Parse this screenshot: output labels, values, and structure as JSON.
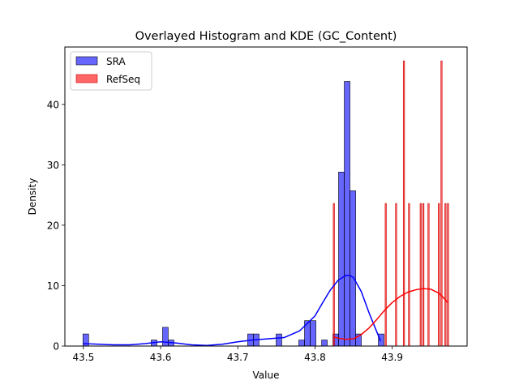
{
  "chart_data": {
    "type": "bar",
    "title": "Overlayed Histogram and KDE (GC_Content)",
    "xlabel": "Value",
    "ylabel": "Density",
    "xlim": [
      43.476,
      43.997
    ],
    "ylim": [
      0,
      49.5
    ],
    "xticks": [
      43.5,
      43.6,
      43.7,
      43.8,
      43.9
    ],
    "xtick_labels": [
      "43.5",
      "43.6",
      "43.7",
      "43.8",
      "43.9"
    ],
    "yticks": [
      0,
      10,
      20,
      30,
      40
    ],
    "ytick_labels": [
      "0",
      "10",
      "20",
      "30",
      "40"
    ],
    "grid": false,
    "legend": {
      "position": "upper-left"
    },
    "series": [
      {
        "name": "SRA",
        "kind": "histogram",
        "color": "#0000ff",
        "alpha": 0.6,
        "bin_width": 0.00736,
        "bins": [
          {
            "x": 43.4994,
            "y": 2.0
          },
          {
            "x": 43.5878,
            "y": 1.0
          },
          {
            "x": 43.6025,
            "y": 3.1
          },
          {
            "x": 43.6099,
            "y": 1.0
          },
          {
            "x": 43.7128,
            "y": 2.0
          },
          {
            "x": 43.7202,
            "y": 2.0
          },
          {
            "x": 43.7496,
            "y": 2.0
          },
          {
            "x": 43.779,
            "y": 1.0
          },
          {
            "x": 43.7864,
            "y": 4.2
          },
          {
            "x": 43.7938,
            "y": 4.2
          },
          {
            "x": 43.8085,
            "y": 1.0
          },
          {
            "x": 43.8232,
            "y": 2.0
          },
          {
            "x": 43.8305,
            "y": 28.8
          },
          {
            "x": 43.8379,
            "y": 43.8
          },
          {
            "x": 43.8453,
            "y": 25.7
          },
          {
            "x": 43.8526,
            "y": 2.0
          },
          {
            "x": 43.882,
            "y": 2.0
          }
        ],
        "kde": {
          "x": [
            43.5,
            43.52,
            43.54,
            43.56,
            43.58,
            43.6,
            43.62,
            43.64,
            43.66,
            43.68,
            43.7,
            43.72,
            43.74,
            43.76,
            43.78,
            43.8,
            43.81,
            43.82,
            43.83,
            43.84,
            43.845,
            43.85,
            43.86,
            43.87,
            43.885
          ],
          "y": [
            0.4,
            0.3,
            0.2,
            0.2,
            0.4,
            0.7,
            0.5,
            0.2,
            0.1,
            0.3,
            0.7,
            1.0,
            1.2,
            1.4,
            2.5,
            5.0,
            7.2,
            9.3,
            10.9,
            11.7,
            11.7,
            11.3,
            9.0,
            5.5,
            0.8
          ]
        }
      },
      {
        "name": "RefSeq",
        "kind": "histogram",
        "color": "#ff0000",
        "alpha": 0.6,
        "bin_width": 0.00168,
        "bins": [
          {
            "x": 43.8236,
            "y": 23.6
          },
          {
            "x": 43.8908,
            "y": 23.6
          },
          {
            "x": 43.9042,
            "y": 23.6
          },
          {
            "x": 43.9143,
            "y": 47.2
          },
          {
            "x": 43.921,
            "y": 23.6
          },
          {
            "x": 43.9361,
            "y": 23.6
          },
          {
            "x": 43.9395,
            "y": 23.6
          },
          {
            "x": 43.9462,
            "y": 23.6
          },
          {
            "x": 43.9596,
            "y": 23.6
          },
          {
            "x": 43.963,
            "y": 47.2
          },
          {
            "x": 43.9681,
            "y": 23.6
          },
          {
            "x": 43.9714,
            "y": 23.6
          }
        ],
        "kde": {
          "x": [
            43.824,
            43.83,
            43.84,
            43.85,
            43.86,
            43.87,
            43.88,
            43.89,
            43.9,
            43.91,
            43.92,
            43.93,
            43.94,
            43.95,
            43.96,
            43.965,
            43.972
          ],
          "y": [
            1.5,
            1.3,
            1.1,
            1.2,
            1.9,
            3.0,
            4.4,
            5.9,
            7.2,
            8.2,
            8.9,
            9.3,
            9.5,
            9.4,
            8.8,
            8.2,
            7.2
          ]
        }
      }
    ]
  }
}
